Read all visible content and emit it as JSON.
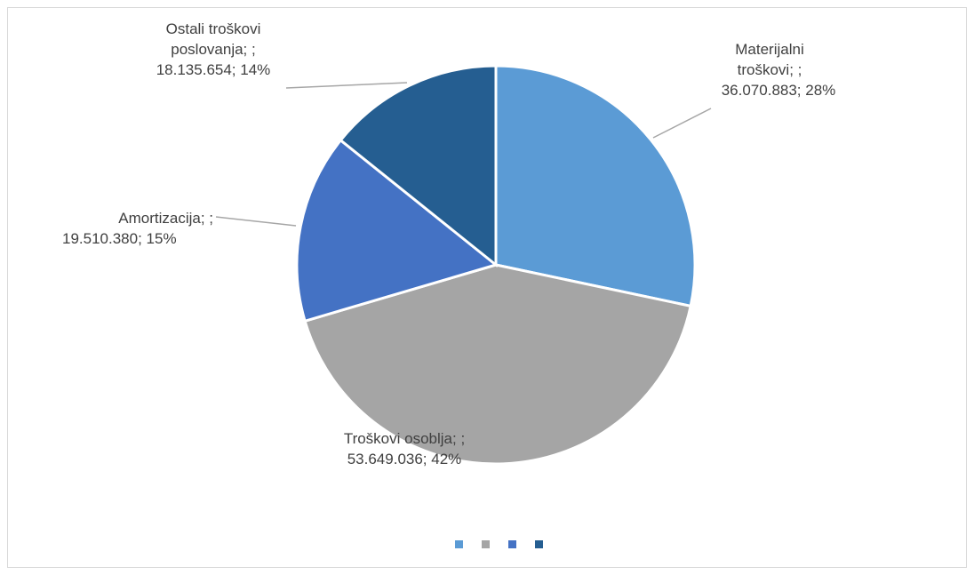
{
  "chart_data": {
    "type": "pie",
    "slices": [
      {
        "name": "Materijalni troškovi",
        "value": 36070883,
        "percent": 28,
        "label_lines": [
          "Materijalni",
          "troškovi; ;",
          "36.070.883; 28%"
        ],
        "color": "#5b9bd5"
      },
      {
        "name": "Troškovi osoblja",
        "value": 53649036,
        "percent": 42,
        "label_lines": [
          "Troškovi osoblja; ;",
          "53.649.036; 42%"
        ],
        "color": "#a5a5a5"
      },
      {
        "name": "Amortizacija",
        "value": 19510380,
        "percent": 15,
        "label_lines": [
          "Amortizacija; ;",
          "19.510.380; 15%"
        ],
        "color": "#4472c4"
      },
      {
        "name": "Ostali troškovi poslovanja",
        "value": 18135654,
        "percent": 14,
        "label_lines": [
          "Ostali troškovi",
          "poslovanja; ;",
          "18.135.654; 14%"
        ],
        "color": "#255e91"
      }
    ],
    "legend": "bottom",
    "legend_labels_visible": false
  }
}
